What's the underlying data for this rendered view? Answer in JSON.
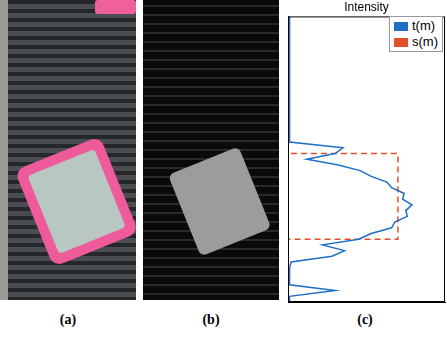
{
  "captions": [
    "(a)",
    "(b)",
    "(c)"
  ],
  "chart_data": {
    "type": "line",
    "orientation": "horizontal",
    "title": "Intensity",
    "y": [
      0,
      2,
      4,
      6,
      8,
      10,
      12,
      14,
      16,
      18,
      20,
      22,
      24,
      26,
      28,
      30,
      32,
      34,
      36,
      38,
      40,
      42,
      44,
      46,
      48,
      50,
      52,
      54,
      56,
      58,
      60,
      62,
      64,
      66,
      68,
      70,
      72,
      74,
      76,
      78,
      80,
      82,
      84,
      86,
      88,
      90,
      92,
      94,
      96,
      98,
      100
    ],
    "series": [
      {
        "name": "t(m)",
        "color": "#1f6fc5",
        "line_style": "solid",
        "values": [
          0.01,
          0.01,
          0.01,
          0.01,
          0.01,
          0.01,
          0.01,
          0.01,
          0.01,
          0.01,
          0.01,
          0.01,
          0.01,
          0.01,
          0.01,
          0.01,
          0.01,
          0.01,
          0.01,
          0.01,
          0.01,
          0.01,
          0.01,
          0.35,
          0.3,
          0.12,
          0.32,
          0.46,
          0.53,
          0.63,
          0.66,
          0.74,
          0.73,
          0.79,
          0.75,
          0.76,
          0.68,
          0.66,
          0.53,
          0.45,
          0.22,
          0.36,
          0.28,
          0.02,
          0.01,
          0.01,
          0.01,
          0.01,
          0.3,
          0.01,
          0.01
        ]
      },
      {
        "name": "s(m)",
        "color": "#e0502a",
        "line_style": "dashed",
        "values": [
          0,
          0,
          0,
          0,
          0,
          0,
          0,
          0,
          0,
          0,
          0,
          0,
          0,
          0,
          0,
          0,
          0,
          0,
          0,
          0,
          0,
          0,
          0,
          0,
          0,
          0.7,
          0.7,
          0.7,
          0.7,
          0.7,
          0.7,
          0.7,
          0.7,
          0.7,
          0.7,
          0.7,
          0.7,
          0.7,
          0.7,
          0.7,
          0,
          0,
          0,
          0,
          0,
          0,
          0,
          0,
          0,
          0,
          0
        ]
      }
    ],
    "xlim": [
      0,
      1
    ],
    "xticks": [],
    "ylim": [
      0,
      100
    ],
    "yticks": [],
    "tick_labels": false,
    "grid": false,
    "legend": "upper right"
  }
}
